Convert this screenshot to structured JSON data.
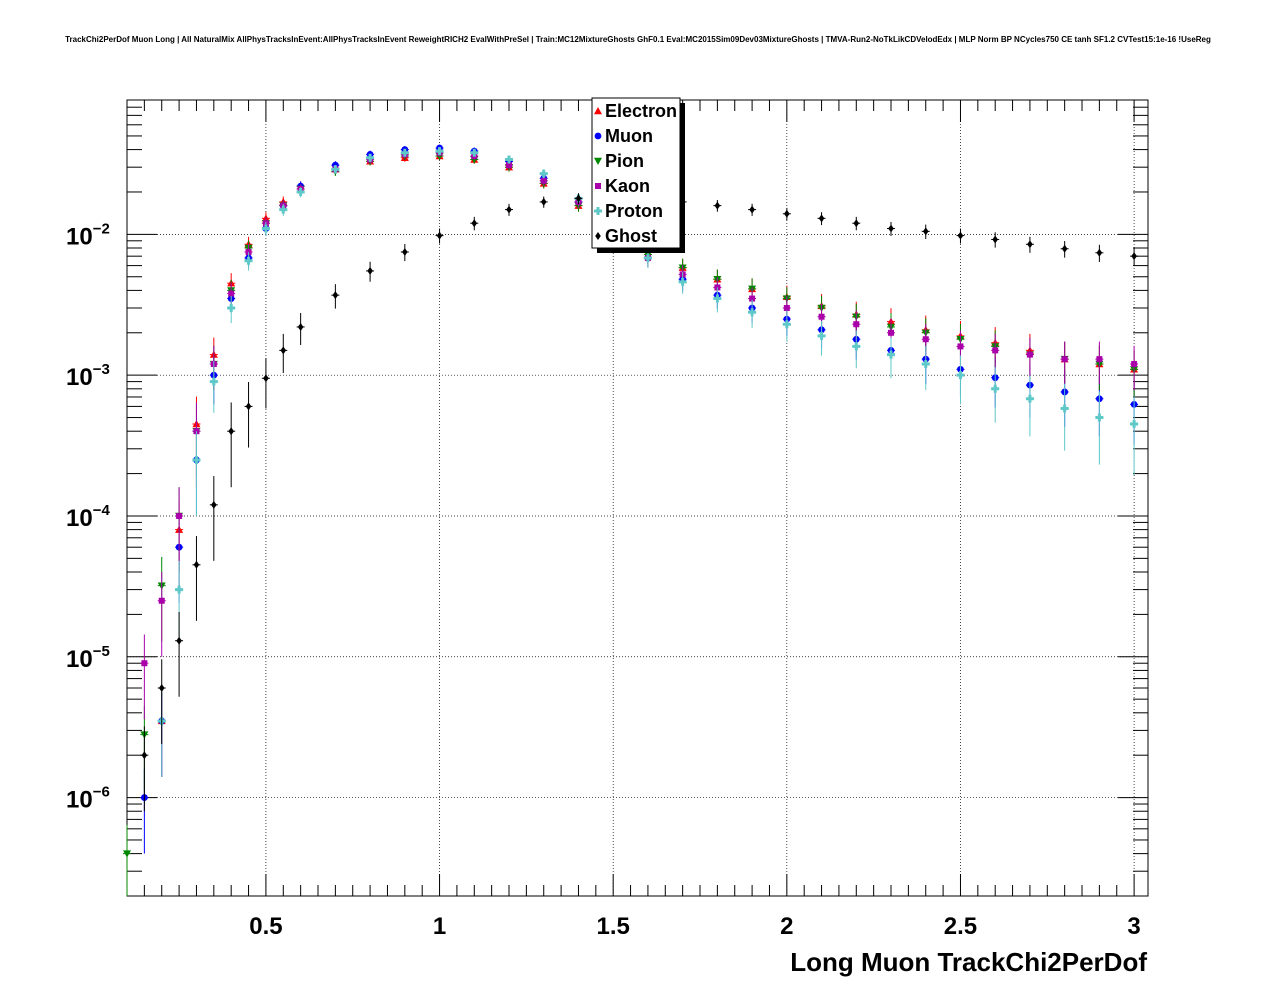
{
  "chart_data": {
    "type": "scatter",
    "title": "TrackChi2PerDof Muon Long | All NaturalMix AllPhysTracksInEvent:AllPhysTracksInEvent ReweightRICH2 EvalWithPreSel | Train:MC12MixtureGhosts GhF0.1 Eval:MC2015Sim09Dev03MixtureGhosts | TMVA-Run2-NoTkLikCDVelodEdx | MLP Norm BP NCycles750 CE tanh SF1.2 CVTest15:1e-16 !UseReg",
    "xlabel": "Long Muon TrackChi2PerDof",
    "ylabel": "",
    "xlim": [
      0.1,
      3.04
    ],
    "ylim": [
      2e-07,
      0.09
    ],
    "yscale": "log",
    "grid": true,
    "legend_position": "top-center",
    "x_ticks": [
      {
        "value": 0.5,
        "label": "0.5"
      },
      {
        "value": 1.0,
        "label": "1"
      },
      {
        "value": 1.5,
        "label": "1.5"
      },
      {
        "value": 2.0,
        "label": "2"
      },
      {
        "value": 2.5,
        "label": "2.5"
      },
      {
        "value": 3.0,
        "label": "3"
      }
    ],
    "y_ticks": [
      {
        "value": 1e-06,
        "base": "10",
        "exp": "−6"
      },
      {
        "value": 1e-05,
        "base": "10",
        "exp": "−5"
      },
      {
        "value": 0.0001,
        "base": "10",
        "exp": "−4"
      },
      {
        "value": 0.001,
        "base": "10",
        "exp": "−3"
      },
      {
        "value": 0.01,
        "base": "10",
        "exp": "−2"
      }
    ],
    "series": [
      {
        "name": "Electron",
        "color": "#ff0000",
        "marker": "triangle-up",
        "x": [
          0.2,
          0.25,
          0.3,
          0.35,
          0.4,
          0.45,
          0.5,
          0.55,
          0.6,
          0.7,
          0.8,
          0.9,
          1.0,
          1.1,
          1.2,
          1.3,
          1.4,
          1.5,
          1.6,
          1.7,
          1.8,
          1.9,
          2.0,
          2.1,
          2.2,
          2.3,
          2.4,
          2.5,
          2.6,
          2.7,
          2.8,
          2.9,
          3.0
        ],
        "y": [
          3.5e-06,
          8e-05,
          0.00045,
          0.0014,
          0.0045,
          0.0085,
          0.013,
          0.017,
          0.022,
          0.029,
          0.033,
          0.035,
          0.036,
          0.034,
          0.03,
          0.023,
          0.016,
          0.011,
          0.0072,
          0.0058,
          0.0048,
          0.0041,
          0.0036,
          0.0031,
          0.0027,
          0.0024,
          0.0021,
          0.0019,
          0.0017,
          0.0015,
          0.0013,
          0.0012,
          0.0011
        ]
      },
      {
        "name": "Muon",
        "color": "#0000ff",
        "marker": "circle",
        "x": [
          0.15,
          0.2,
          0.25,
          0.3,
          0.35,
          0.4,
          0.45,
          0.5,
          0.55,
          0.6,
          0.7,
          0.8,
          0.9,
          1.0,
          1.1,
          1.2,
          1.3,
          1.4,
          1.5,
          1.6,
          1.7,
          1.8,
          1.9,
          2.0,
          2.1,
          2.2,
          2.3,
          2.4,
          2.5,
          2.6,
          2.7,
          2.8,
          2.9,
          3.0
        ],
        "y": [
          1e-06,
          3.5e-06,
          6e-05,
          0.00025,
          0.001,
          0.0035,
          0.0068,
          0.011,
          0.016,
          0.022,
          0.031,
          0.037,
          0.04,
          0.041,
          0.039,
          0.033,
          0.025,
          0.017,
          0.011,
          0.0068,
          0.0048,
          0.0037,
          0.003,
          0.0025,
          0.0021,
          0.0018,
          0.0015,
          0.0013,
          0.0011,
          0.00096,
          0.00085,
          0.00076,
          0.00068,
          0.00062
        ]
      },
      {
        "name": "Pion",
        "color": "#008800",
        "marker": "triangle-down",
        "x": [
          0.1,
          0.15,
          0.2,
          0.25,
          0.3,
          0.35,
          0.4,
          0.45,
          0.5,
          0.55,
          0.6,
          0.7,
          0.8,
          0.9,
          1.0,
          1.1,
          1.2,
          1.3,
          1.4,
          1.5,
          1.6,
          1.7,
          1.8,
          1.9,
          2.0,
          2.1,
          2.2,
          2.3,
          2.4,
          2.5,
          2.6,
          2.7,
          2.8,
          2.9,
          3.0
        ],
        "y": [
          4e-07,
          2.8e-06,
          3.2e-05,
          0.0001,
          0.0004,
          0.0012,
          0.004,
          0.008,
          0.012,
          0.016,
          0.021,
          0.028,
          0.033,
          0.036,
          0.036,
          0.034,
          0.03,
          0.023,
          0.016,
          0.011,
          0.0072,
          0.0058,
          0.0048,
          0.0041,
          0.0035,
          0.003,
          0.0026,
          0.0022,
          0.002,
          0.0018,
          0.0016,
          0.0014,
          0.0013,
          0.0012,
          0.0011
        ]
      },
      {
        "name": "Kaon",
        "color": "#aa00aa",
        "marker": "square",
        "x": [
          0.15,
          0.2,
          0.25,
          0.3,
          0.35,
          0.4,
          0.45,
          0.5,
          0.55,
          0.6,
          0.7,
          0.8,
          0.9,
          1.0,
          1.1,
          1.2,
          1.3,
          1.4,
          1.5,
          1.6,
          1.7,
          1.8,
          1.9,
          2.0,
          2.1,
          2.2,
          2.3,
          2.4,
          2.5,
          2.6,
          2.7,
          2.8,
          2.9,
          3.0
        ],
        "y": [
          9e-06,
          2.5e-05,
          0.0001,
          0.0004,
          0.0012,
          0.0038,
          0.0075,
          0.012,
          0.016,
          0.021,
          0.029,
          0.034,
          0.037,
          0.038,
          0.036,
          0.031,
          0.024,
          0.017,
          0.011,
          0.0068,
          0.0052,
          0.0042,
          0.0035,
          0.003,
          0.0026,
          0.0023,
          0.002,
          0.0018,
          0.0016,
          0.0015,
          0.0014,
          0.0013,
          0.0013,
          0.0012
        ]
      },
      {
        "name": "Proton",
        "color": "#5fc8c8",
        "marker": "cross",
        "x": [
          0.2,
          0.25,
          0.3,
          0.35,
          0.4,
          0.45,
          0.5,
          0.55,
          0.6,
          0.7,
          0.8,
          0.9,
          1.0,
          1.1,
          1.2,
          1.3,
          1.4,
          1.5,
          1.6,
          1.7,
          1.8,
          1.9,
          2.0,
          2.1,
          2.2,
          2.3,
          2.4,
          2.5,
          2.6,
          2.7,
          2.8,
          2.9,
          3.0
        ],
        "y": [
          3.5e-06,
          3e-05,
          0.00025,
          0.0009,
          0.003,
          0.0065,
          0.011,
          0.015,
          0.02,
          0.029,
          0.035,
          0.038,
          0.039,
          0.038,
          0.034,
          0.027,
          0.018,
          0.011,
          0.0068,
          0.0046,
          0.0035,
          0.0028,
          0.0023,
          0.0019,
          0.0016,
          0.0014,
          0.0012,
          0.001,
          0.0008,
          0.00068,
          0.00058,
          0.0005,
          0.00045
        ]
      },
      {
        "name": "Ghost",
        "color": "#000000",
        "marker": "diamond",
        "x": [
          0.15,
          0.2,
          0.25,
          0.3,
          0.35,
          0.4,
          0.45,
          0.5,
          0.55,
          0.6,
          0.7,
          0.8,
          0.9,
          1.0,
          1.1,
          1.2,
          1.3,
          1.4,
          1.5,
          1.6,
          1.7,
          1.8,
          1.9,
          2.0,
          2.1,
          2.2,
          2.3,
          2.4,
          2.5,
          2.6,
          2.7,
          2.8,
          2.9,
          3.0
        ],
        "y": [
          2e-06,
          6e-06,
          1.3e-05,
          4.5e-05,
          0.00012,
          0.0004,
          0.0006,
          0.00095,
          0.0015,
          0.0022,
          0.0037,
          0.0055,
          0.0075,
          0.0098,
          0.012,
          0.015,
          0.017,
          0.018,
          0.0185,
          0.018,
          0.017,
          0.016,
          0.015,
          0.014,
          0.013,
          0.012,
          0.011,
          0.0105,
          0.0098,
          0.0092,
          0.0085,
          0.0079,
          0.0074,
          0.007
        ]
      }
    ]
  }
}
